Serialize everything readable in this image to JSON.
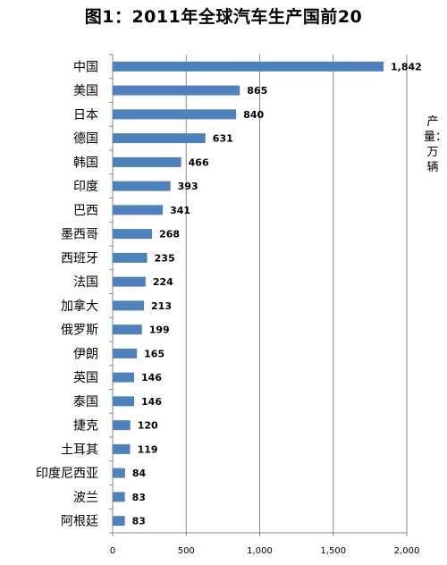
{
  "chart_data": {
    "type": "bar",
    "orientation": "horizontal",
    "title": "图1：2011年全球汽车生产国前20",
    "unit_label": "产量：万辆",
    "categories": [
      "中国",
      "美国",
      "日本",
      "德国",
      "韩国",
      "印度",
      "巴西",
      "墨西哥",
      "西班牙",
      "法国",
      "加拿大",
      "俄罗斯",
      "伊朗",
      "英国",
      "泰国",
      "捷克",
      "土耳其",
      "印度尼西亚",
      "波兰",
      "阿根廷"
    ],
    "values": [
      1842,
      865,
      840,
      631,
      466,
      393,
      341,
      268,
      235,
      224,
      213,
      199,
      165,
      146,
      146,
      120,
      119,
      84,
      83,
      83
    ],
    "value_labels": [
      "1,842",
      "865",
      "840",
      "631",
      "466",
      "393",
      "341",
      "268",
      "235",
      "224",
      "213",
      "199",
      "165",
      "146",
      "146",
      "120",
      "119",
      "84",
      "83",
      "83"
    ],
    "xlim": [
      0,
      2000
    ],
    "ticks": [
      0,
      500,
      1000,
      1500,
      2000
    ],
    "tick_labels": [
      "0",
      "500",
      "1,000",
      "1,500",
      "2,000"
    ],
    "grid": true,
    "bar_color": "#4f81bd"
  }
}
